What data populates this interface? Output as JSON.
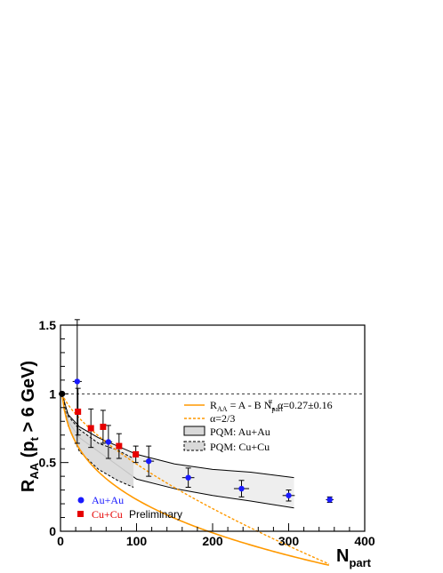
{
  "chart_data": {
    "type": "scatter",
    "xlim": [
      0,
      400
    ],
    "ylim": [
      0,
      1.5
    ],
    "x_ticks": [
      0,
      100,
      200,
      300,
      400
    ],
    "y_ticks": [
      0,
      0.5,
      1,
      1.5
    ],
    "x_tick_labels": [
      "0",
      "100",
      "200",
      "300",
      "400"
    ],
    "y_tick_labels": [
      "0",
      "0.5",
      "1",
      "1.5"
    ],
    "xlabel": {
      "main": "N",
      "sub": "part"
    },
    "ylabel": {
      "main": "R",
      "sub": "AA",
      "rest": " (p",
      "sub2": "t",
      "rest2": " > 6 GeV)"
    },
    "grid": false,
    "reference_line": {
      "y": 1
    },
    "series": [
      {
        "name": "Au+Au",
        "color": "#1a1aff",
        "marker": "circle",
        "points": [
          {
            "x": 2,
            "y": 1.0,
            "ey": 0.0,
            "ex": 0
          },
          {
            "x": 22,
            "y": 1.09,
            "ey": 0.45,
            "ex": 6
          },
          {
            "x": 63,
            "y": 0.65,
            "ey": 0.12,
            "ex": 5
          },
          {
            "x": 116,
            "y": 0.51,
            "ey": 0.11,
            "ex": 7
          },
          {
            "x": 168,
            "y": 0.39,
            "ey": 0.07,
            "ex": 8
          },
          {
            "x": 238,
            "y": 0.31,
            "ey": 0.06,
            "ex": 10
          },
          {
            "x": 300,
            "y": 0.26,
            "ey": 0.04,
            "ex": 8
          },
          {
            "x": 354,
            "y": 0.23,
            "ey": 0.02,
            "ex": 5
          }
        ]
      },
      {
        "name": "Cu+Cu",
        "color": "#e60000",
        "marker": "square",
        "points": [
          {
            "x": 2,
            "y": 1.0,
            "ey": 0.0
          },
          {
            "x": 23,
            "y": 0.87,
            "ey": 0.17
          },
          {
            "x": 40,
            "y": 0.75,
            "ey": 0.14
          },
          {
            "x": 56,
            "y": 0.76,
            "ey": 0.12
          },
          {
            "x": 77,
            "y": 0.62,
            "ey": 0.09
          },
          {
            "x": 99,
            "y": 0.56,
            "ey": 0.06
          }
        ]
      }
    ],
    "fits": [
      {
        "name": "fit",
        "color": "#ff9900",
        "style": "solid",
        "A": 1.0,
        "B": 0.34,
        "alpha": 0.27
      },
      {
        "name": "alpha23",
        "color": "#ff9900",
        "style": "dashed",
        "A": 1.0,
        "B": 0.0256,
        "alpha": 0.6667
      }
    ],
    "bands": [
      {
        "name": "PQM: Au+Au",
        "style": "solid",
        "fill": "#eeeeee",
        "upper": [
          [
            2,
            1.0
          ],
          [
            10,
            0.85
          ],
          [
            25,
            0.76
          ],
          [
            50,
            0.68
          ],
          [
            100,
            0.56
          ],
          [
            150,
            0.49
          ],
          [
            200,
            0.45
          ],
          [
            250,
            0.43
          ],
          [
            307,
            0.39
          ]
        ],
        "lower": [
          [
            2,
            1.0
          ],
          [
            10,
            0.8
          ],
          [
            25,
            0.68
          ],
          [
            50,
            0.58
          ],
          [
            100,
            0.38
          ],
          [
            150,
            0.31
          ],
          [
            200,
            0.26
          ],
          [
            250,
            0.22
          ],
          [
            307,
            0.17
          ]
        ]
      },
      {
        "name": "PQM: Cu+Cu",
        "style": "dashed",
        "fill": "#d8d8d8",
        "upper": [
          [
            2,
            1.0
          ],
          [
            10,
            0.84
          ],
          [
            25,
            0.74
          ],
          [
            50,
            0.64
          ],
          [
            75,
            0.59
          ],
          [
            96,
            0.53
          ]
        ],
        "lower": [
          [
            2,
            1.0
          ],
          [
            10,
            0.77
          ],
          [
            25,
            0.58
          ],
          [
            50,
            0.45
          ],
          [
            75,
            0.37
          ],
          [
            96,
            0.32
          ]
        ]
      }
    ],
    "legend_top": {
      "fit_label_parts": [
        "R",
        "AA",
        " = A - B N",
        "part",
        "α",
        ", α=0.27±0.16"
      ],
      "alpha_label": "α=2/3",
      "pqm_auau": "PQM: Au+Au",
      "pqm_cucu": "PQM: Cu+Cu"
    },
    "legend_bottom": {
      "auau": "Au+Au",
      "cucu": "Cu+Cu",
      "preliminary": "Preliminary"
    },
    "colors": {
      "auau": "#1a1aff",
      "cucu": "#e60000",
      "fit": "#ff9900"
    }
  }
}
